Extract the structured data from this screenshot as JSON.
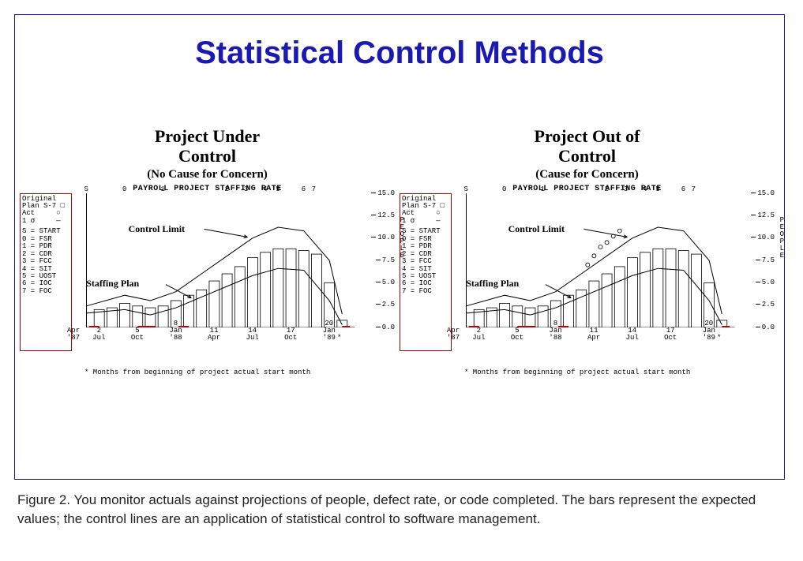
{
  "slide": {
    "title": "Statistical Control Methods"
  },
  "caption": "Figure 2. You monitor actuals against projections of people, defect rate, or code completed. The bars represent the expected values; the control lines are an application of statistical control to software management.",
  "legend": {
    "line1": "Original",
    "line2": "Plan S-7 □",
    "line3": "Act     ○",
    "line4": "1 σ     —",
    "map": [
      "S = START",
      "0 = FSR",
      "1 = PDR",
      "2 = CDR",
      "3 = FCC",
      "4 = SIT",
      "5 = UOST",
      "6 = IOC",
      "7 = FOC"
    ]
  },
  "axes": {
    "plate_title": "PAYROLL PROJECT STAFFING RATE",
    "ylim": [
      0,
      15
    ],
    "yticks": [
      0.0,
      2.5,
      5.0,
      7.5,
      10.0,
      12.5,
      15.0
    ],
    "ylabel_letters": [
      "P",
      "E",
      "O",
      "P",
      "L",
      "E"
    ],
    "xlim": [
      0,
      21
    ],
    "x_numeric_ticks": [
      2,
      5,
      8,
      11,
      14,
      17,
      20
    ],
    "x_month_labels": {
      "0": "Apr\n'87",
      "2": "Jul",
      "5": "Oct",
      "8": "Jan\n'88",
      "11": "Apr",
      "14": "Jul",
      "17": "Oct",
      "20": "Jan\n'89"
    },
    "x_footer": "* Months from beginning of project actual start month",
    "top_milestones": {
      "1": "S",
      "4": "0",
      "7": "1",
      "12": "2",
      "13.5": "3",
      "15": "4",
      "16": "5",
      "18": "6",
      "18.8": "7"
    }
  },
  "colors": {
    "title": "#1a1ab3",
    "border": "#1a1a99",
    "legend_border": "#a00000",
    "baseline_red": "#c00000",
    "ink": "#000000",
    "bar_fill": "#ffffff"
  },
  "series": {
    "bar_width": 0.8,
    "bars": [
      {
        "x": 1,
        "y": 2.0
      },
      {
        "x": 2,
        "y": 2.2
      },
      {
        "x": 3,
        "y": 2.7
      },
      {
        "x": 4,
        "y": 2.4
      },
      {
        "x": 5,
        "y": 2.2
      },
      {
        "x": 6,
        "y": 2.4
      },
      {
        "x": 7,
        "y": 3.0
      },
      {
        "x": 8,
        "y": 3.6
      },
      {
        "x": 9,
        "y": 4.2
      },
      {
        "x": 10,
        "y": 5.2
      },
      {
        "x": 11,
        "y": 6.0
      },
      {
        "x": 12,
        "y": 6.8
      },
      {
        "x": 13,
        "y": 7.8
      },
      {
        "x": 14,
        "y": 8.4
      },
      {
        "x": 15,
        "y": 8.8
      },
      {
        "x": 16,
        "y": 8.8
      },
      {
        "x": 17,
        "y": 8.6
      },
      {
        "x": 18,
        "y": 8.2
      },
      {
        "x": 19,
        "y": 5.0
      },
      {
        "x": 20,
        "y": 0.8
      }
    ],
    "control_upper": [
      {
        "x": 0,
        "y": 2.4
      },
      {
        "x": 3,
        "y": 3.6
      },
      {
        "x": 5,
        "y": 3.0
      },
      {
        "x": 7,
        "y": 4.0
      },
      {
        "x": 9,
        "y": 6.0
      },
      {
        "x": 11,
        "y": 8.0
      },
      {
        "x": 13,
        "y": 10.0
      },
      {
        "x": 15,
        "y": 11.2
      },
      {
        "x": 17,
        "y": 10.8
      },
      {
        "x": 19,
        "y": 7.5
      },
      {
        "x": 20,
        "y": 1.5
      }
    ],
    "control_lower": [
      {
        "x": 0,
        "y": 1.6
      },
      {
        "x": 3,
        "y": 2.0
      },
      {
        "x": 5,
        "y": 1.4
      },
      {
        "x": 7,
        "y": 2.2
      },
      {
        "x": 9,
        "y": 3.4
      },
      {
        "x": 11,
        "y": 4.6
      },
      {
        "x": 13,
        "y": 5.8
      },
      {
        "x": 15,
        "y": 6.6
      },
      {
        "x": 17,
        "y": 6.4
      },
      {
        "x": 19,
        "y": 3.0
      },
      {
        "x": 20,
        "y": 0.3
      }
    ],
    "baseline_segments": [
      [
        0.2,
        1.0
      ],
      [
        4.0,
        5.4
      ],
      [
        7.2,
        8.0
      ],
      [
        20.0,
        20.6
      ]
    ],
    "actuals_right": [
      {
        "x": 9.5,
        "y": 7.0
      },
      {
        "x": 10,
        "y": 8.0
      },
      {
        "x": 10.5,
        "y": 9.0
      },
      {
        "x": 11,
        "y": 9.5
      },
      {
        "x": 11.5,
        "y": 10.2
      },
      {
        "x": 12,
        "y": 10.8
      }
    ]
  },
  "charts": [
    {
      "title_line1": "Project Under",
      "title_line2": "Control",
      "paren": "(No Cause for Concern)",
      "annot_control": "Control Limit",
      "annot_staffing": "Staffing Plan",
      "show_outliers": false
    },
    {
      "title_line1": "Project Out of",
      "title_line2": "Control",
      "paren": "(Cause for Concern)",
      "annot_control": "Control Limit",
      "annot_staffing": "Staffing Plan",
      "show_outliers": true
    }
  ]
}
